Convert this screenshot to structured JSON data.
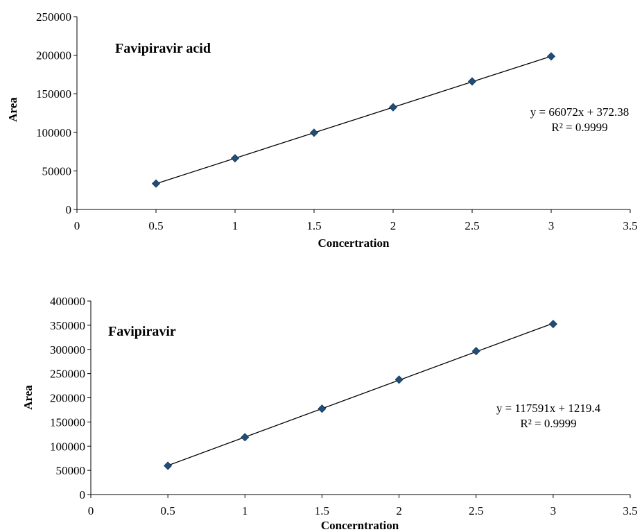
{
  "colors": {
    "marker": "#1f4e79",
    "marker_stroke": "#17365d",
    "trendline": "#000000",
    "axis": "#000000"
  },
  "chart_data": [
    {
      "type": "scatter",
      "title": "Favipiravir acid",
      "xlabel": "Concertration",
      "ylabel": "Area",
      "xlim": [
        0,
        3.5
      ],
      "ylim": [
        0,
        250000
      ],
      "xticks": [
        0,
        0.5,
        1,
        1.5,
        2,
        2.5,
        3,
        3.5
      ],
      "xtick_labels": [
        "0",
        "0.5",
        "1",
        "1.5",
        "2",
        "2.5",
        "3",
        "3.5"
      ],
      "yticks": [
        0,
        50000,
        100000,
        150000,
        200000,
        250000
      ],
      "ytick_labels": [
        "0",
        "50000",
        "100000",
        "150000",
        "200000",
        "250000"
      ],
      "marker": "diamond",
      "grid": false,
      "series": [
        {
          "x": [
            0.5,
            1,
            1.5,
            2,
            2.5,
            3
          ],
          "y": [
            33600,
            66400,
            99500,
            132500,
            166000,
            198500
          ]
        }
      ],
      "trendline": {
        "slope": 66072,
        "intercept": 372.38
      },
      "equation": "y = 66072x + 372.38",
      "r2": "R² = 0.9999"
    },
    {
      "type": "scatter",
      "title": "Favipiravir",
      "xlabel": "Concerntration",
      "ylabel": "Area",
      "xlim": [
        0,
        3.5
      ],
      "ylim": [
        0,
        400000
      ],
      "xticks": [
        0,
        0.5,
        1,
        1.5,
        2,
        2.5,
        3,
        3.5
      ],
      "xtick_labels": [
        "0",
        "0.5",
        "1",
        "1.5",
        "2",
        "2.5",
        "3",
        "3.5"
      ],
      "yticks": [
        0,
        50000,
        100000,
        150000,
        200000,
        250000,
        300000,
        350000,
        400000
      ],
      "ytick_labels": [
        "0",
        "50000",
        "100000",
        "150000",
        "200000",
        "250000",
        "300000",
        "350000",
        "400000"
      ],
      "marker": "diamond",
      "grid": false,
      "series": [
        {
          "x": [
            0.5,
            1,
            1.5,
            2,
            2.5,
            3
          ],
          "y": [
            59500,
            118500,
            177500,
            237500,
            296500,
            352500
          ]
        }
      ],
      "trendline": {
        "slope": 117591,
        "intercept": 1219.4
      },
      "equation": "y = 117591x + 1219.4",
      "r2": "R² = 0.9999"
    }
  ]
}
